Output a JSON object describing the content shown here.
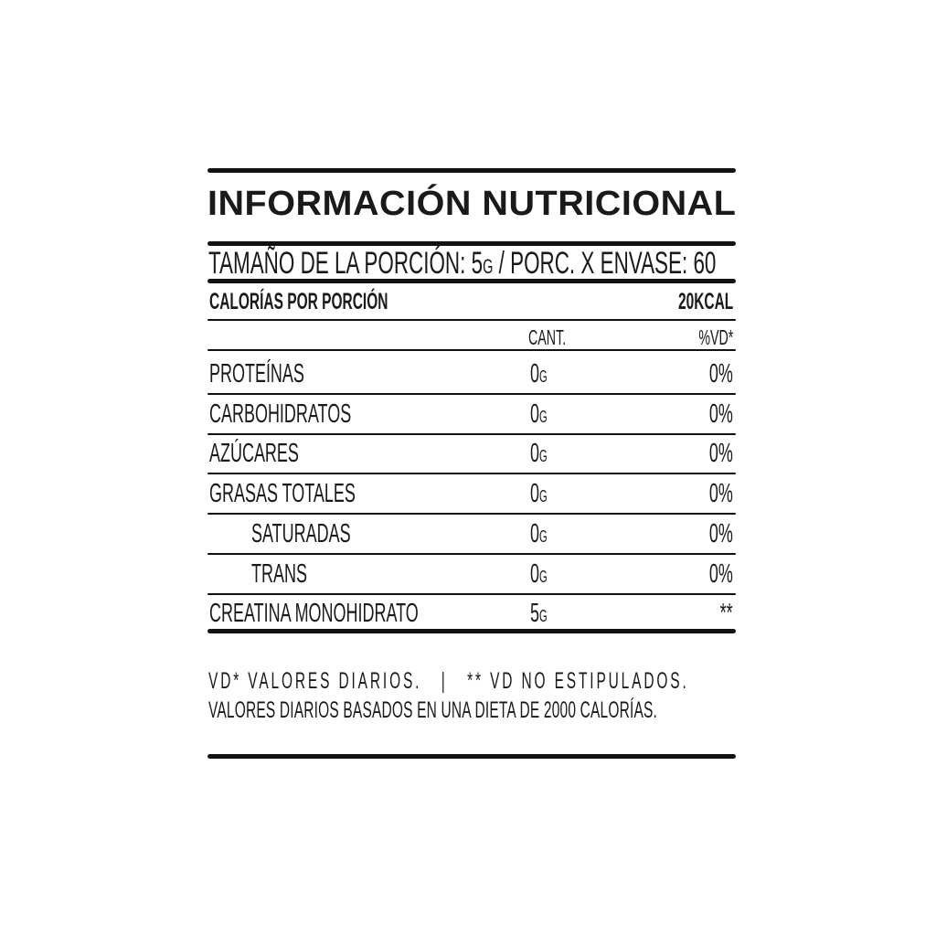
{
  "title": "INFORMACIÓN NUTRICIONAL",
  "serving": {
    "label": "TAMAÑO DE LA PORCIÓN: 5",
    "unit": "G",
    "rest": " / PORC. X ENVASE: 60"
  },
  "calories": {
    "label": "CALORÍAS POR PORCIÓN",
    "value": "20KCAL"
  },
  "headers": {
    "amount": "CANT.",
    "dv": "%VD*"
  },
  "rows": [
    {
      "label": "PROTEÍNAS",
      "amount": "0",
      "unit": "G",
      "dv": "0%"
    },
    {
      "label": "CARBOHIDRATOS",
      "amount": "0",
      "unit": "G",
      "dv": "0%"
    },
    {
      "label": "AZÚCARES",
      "amount": "0",
      "unit": "G",
      "dv": "0%"
    },
    {
      "label": "GRASAS TOTALES",
      "amount": "0",
      "unit": "G",
      "dv": "0%"
    },
    {
      "label": "SATURADAS",
      "amount": "0",
      "unit": "G",
      "dv": "0%"
    },
    {
      "label": "TRANS",
      "amount": "0",
      "unit": "G",
      "dv": "0%"
    },
    {
      "label": "CREATINA MONOHIDRATO",
      "amount": "5",
      "unit": "G",
      "dv": "**"
    }
  ],
  "footer": {
    "line1": "VD* VALORES DIARIOS.   |   ** VD NO ESTIPULADOS.",
    "line2": "VALORES DIARIOS BASADOS EN UNA DIETA DE 2000 CALORÍAS."
  }
}
